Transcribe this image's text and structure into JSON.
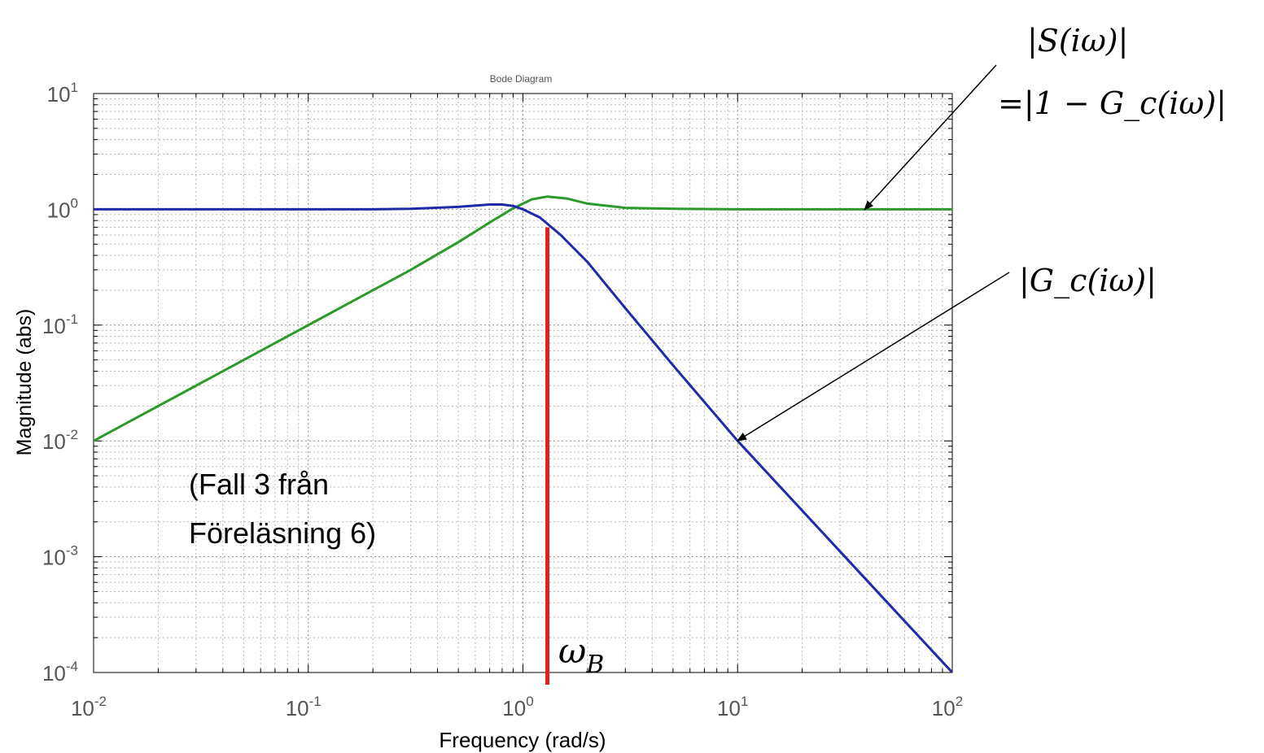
{
  "chart_data": {
    "type": "line",
    "title": "Bode Diagram",
    "xlabel": "Frequency  (rad/s)",
    "ylabel": "Magnitude (abs)",
    "x_scale": "log",
    "y_scale": "log",
    "xlim": [
      0.01,
      100
    ],
    "ylim": [
      0.0001,
      10
    ],
    "grid": true,
    "x_ticks": [
      {
        "base": "10",
        "exp": "-2"
      },
      {
        "base": "10",
        "exp": "-1"
      },
      {
        "base": "10",
        "exp": "0"
      },
      {
        "base": "10",
        "exp": "1"
      },
      {
        "base": "10",
        "exp": "2"
      }
    ],
    "y_ticks": [
      {
        "base": "10",
        "exp": "1"
      },
      {
        "base": "10",
        "exp": "0"
      },
      {
        "base": "10",
        "exp": "-1"
      },
      {
        "base": "10",
        "exp": "-2"
      },
      {
        "base": "10",
        "exp": "-3"
      },
      {
        "base": "10",
        "exp": "-4"
      }
    ],
    "series": [
      {
        "label": "|S(iω)| =|1 − Gc(iω)|",
        "color": "#2a9a2a",
        "x": [
          0.01,
          0.02,
          0.05,
          0.1,
          0.2,
          0.3,
          0.5,
          0.7,
          0.9,
          1.1,
          1.3,
          1.6,
          2.0,
          3.0,
          5.0,
          10,
          20,
          50,
          100
        ],
        "y": [
          0.01,
          0.02,
          0.05,
          0.1,
          0.2,
          0.3,
          0.52,
          0.77,
          1.02,
          1.22,
          1.29,
          1.24,
          1.12,
          1.03,
          1.01,
          1.0,
          1.0,
          1.0,
          1.0
        ]
      },
      {
        "label": "|Gc(iω)|",
        "color": "#1f2aa8",
        "x": [
          0.01,
          0.1,
          0.2,
          0.3,
          0.5,
          0.7,
          0.8,
          0.9,
          1.0,
          1.2,
          1.5,
          2.0,
          3.0,
          5.0,
          10,
          20,
          50,
          100
        ],
        "y": [
          1.0,
          1.0,
          1.0,
          1.01,
          1.05,
          1.1,
          1.1,
          1.07,
          1.0,
          0.85,
          0.6,
          0.35,
          0.14,
          0.045,
          0.01,
          0.0025,
          0.0004,
          0.0001
        ]
      }
    ],
    "marker": {
      "label": "ω_B",
      "color": "#e02020",
      "x": 1.3,
      "y_top": 0.7
    },
    "annotations": {
      "s_label": "|S(iω)|",
      "s_label_2": "=|1 − G_c(iω)|",
      "gc_label": "|G_c(iω)|",
      "omega_b": "ω",
      "omega_b_sub": "B",
      "note_line1": "(Fall 3 från",
      "note_line2": "Föreläsning 6)"
    }
  }
}
